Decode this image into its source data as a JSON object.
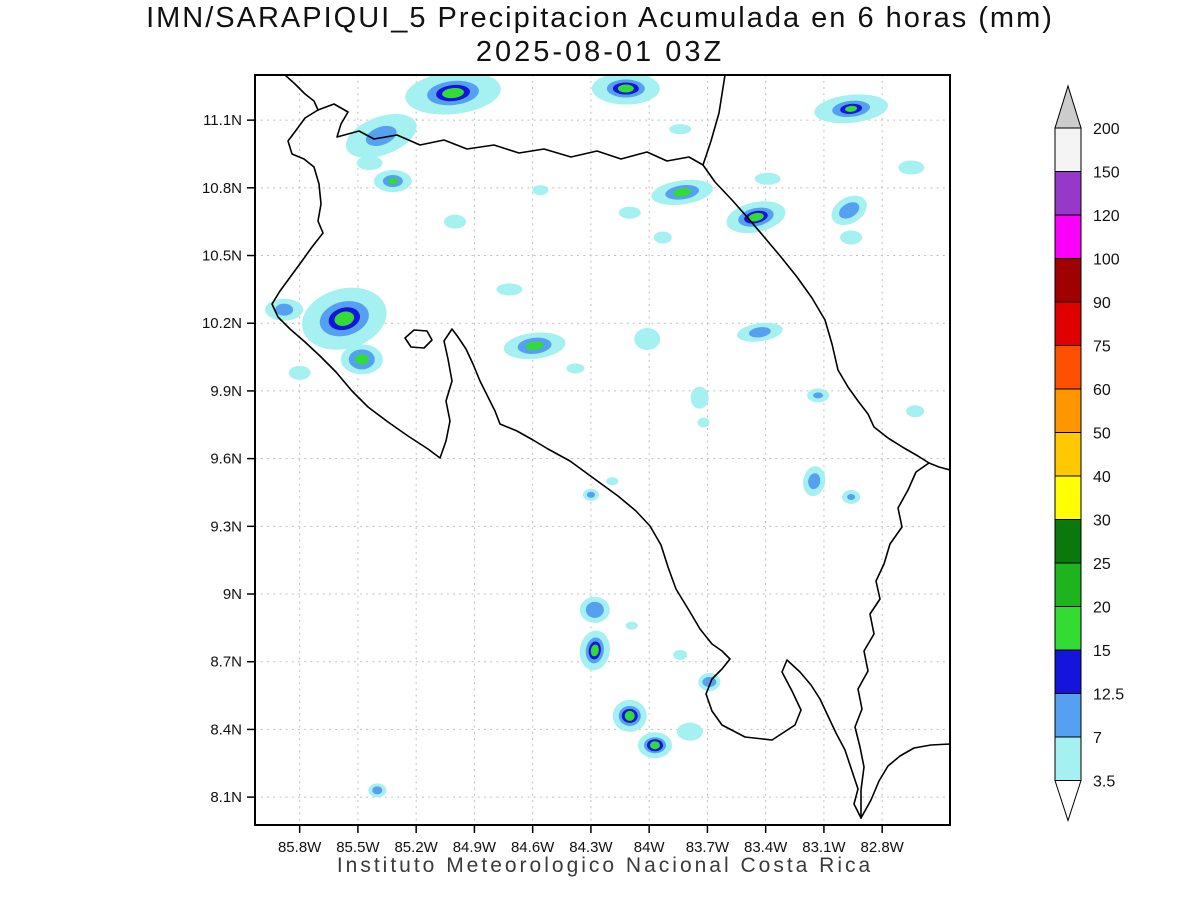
{
  "title": {
    "line1": "IMN/SARAPIQUI_5 Precipitacion Acumulada en 6 horas (mm)",
    "line2": "2025-08-01 03Z"
  },
  "footer": "Instituto Meteorologico Nacional Costa Rica",
  "map": {
    "lat_ticks": [
      {
        "label": "11.1N",
        "lat": 11.1
      },
      {
        "label": "10.8N",
        "lat": 10.8
      },
      {
        "label": "10.5N",
        "lat": 10.5
      },
      {
        "label": "10.2N",
        "lat": 10.2
      },
      {
        "label": "9.9N",
        "lat": 9.9
      },
      {
        "label": "9.6N",
        "lat": 9.6
      },
      {
        "label": "9.3N",
        "lat": 9.3
      },
      {
        "label": "9N",
        "lat": 9.0
      },
      {
        "label": "8.7N",
        "lat": 8.7
      },
      {
        "label": "8.4N",
        "lat": 8.4
      },
      {
        "label": "8.1N",
        "lat": 8.1
      }
    ],
    "lon_ticks": [
      {
        "label": "85.8W",
        "lon": 85.8
      },
      {
        "label": "85.5W",
        "lon": 85.5
      },
      {
        "label": "85.2W",
        "lon": 85.2
      },
      {
        "label": "84.9W",
        "lon": 84.9
      },
      {
        "label": "84.6W",
        "lon": 84.6
      },
      {
        "label": "84.3W",
        "lon": 84.3
      },
      {
        "label": "84W",
        "lon": 84.0
      },
      {
        "label": "83.7W",
        "lon": 83.7
      },
      {
        "label": "83.4W",
        "lon": 83.4
      },
      {
        "label": "83.1W",
        "lon": 83.1
      },
      {
        "label": "82.8W",
        "lon": 82.8
      }
    ],
    "coast_paths": [
      "M285,75 L295,84 305,94 314,101 318,110",
      "M318,110 L334,104 348,112 341,124 337,137 359,131 374,139 397,135 420,145 444,140 467,149 494,145 519,153 544,149 571,157 597,151 621,159 647,152 667,161 689,157 703,165",
      "M703,165 L711,141 719,113 725,75",
      "M318,110 L305,118 297,129 288,141 292,154 304,159 314,167 319,184 321,204 318,221 323,233 312,247 302,261 291,276 280,291 272,304 278,317 290,329 305,342 320,356 336,372 352,391 368,407 388,422 408,436 428,449 440,458 446,441 450,421 446,401 452,381 448,359 444,341 452,329 458,337 466,349 473,364 480,381 488,397 495,411 500,424 517,431 533,440 548,449 570,461 596,480 618,496 636,511 650,526 661,545 668,567 676,589 690,612 700,629 712,644 722,651 730,659 722,669 712,679 706,694 712,711 722,725 745,737 772,740 795,725 801,710 792,691 782,672 787,660 800,672 811,685 820,699 828,716 836,733 845,750 852,771 858,789 854,804 861,818",
      "M929,463 L916,472 908,490 898,508 902,527 890,544 884,564 876,581 880,599 870,614 874,634 864,651 868,671 858,689 862,709 855,727 860,747 864,767 861,790 861,818",
      "M703,165 L715,182 732,200 748,218 765,238 781,257 797,277 812,298 825,320 832,344 838,370 848,387 858,401 868,414 874,427 888,438 904,448 918,456 929,463",
      "M929,463 L939,467 950,470",
      "M861,818 L871,800 879,781 888,766 900,756 914,748 931,745 950,744",
      "M405,338 L414,330 427,331 432,340 424,348 411,347 Z"
    ]
  },
  "colorbar": {
    "boundaries_top_to_bottom": [
      "200",
      "150",
      "120",
      "100",
      "90",
      "75",
      "60",
      "50",
      "40",
      "30",
      "25",
      "20",
      "15",
      "12.5",
      "7",
      "3.5"
    ],
    "segment_colors_top_to_bottom": [
      "#f4f4f4",
      "#9638c8",
      "#fa00fa",
      "#a00000",
      "#e10000",
      "#ff5000",
      "#ff9600",
      "#ffc800",
      "#ffff00",
      "#0a780a",
      "#1eb41e",
      "#32dc32",
      "#1414dc",
      "#55a0f0",
      "#a5f0f0"
    ],
    "triangle_top_color": "#cccccc",
    "triangle_bottom_color": "#ffffff"
  },
  "chart_data": {
    "type": "precipitation-contour-map",
    "units": "mm",
    "region": {
      "lon_west_max": 86.03,
      "lon_west_min": 82.45,
      "lat_min": 7.98,
      "lat_max": 11.3
    },
    "levels_mm": [
      3.5,
      7,
      12.5,
      15,
      20,
      25,
      30,
      40,
      50,
      60,
      75,
      90,
      100,
      120,
      150,
      200
    ],
    "palette": {
      "3.5": "#a5f0f0",
      "7": "#55a0f0",
      "12.5": "#1414dc",
      "15": "#32dc32",
      "20": "#1eb41e",
      "25": "#0a780a"
    },
    "cells": [
      {
        "lon": 85.01,
        "lat": 11.22,
        "rot": -6,
        "layers": [
          [
            "3.5",
            48,
            21
          ],
          [
            "7",
            26,
            12
          ],
          [
            "12.5",
            17,
            8
          ],
          [
            "15",
            11,
            5
          ]
        ]
      },
      {
        "lon": 84.12,
        "lat": 11.24,
        "layers": [
          [
            "3.5",
            34,
            16
          ],
          [
            "7",
            19,
            9
          ],
          [
            "12.5",
            13,
            6
          ],
          [
            "15",
            8,
            4
          ]
        ]
      },
      {
        "lon": 82.96,
        "lat": 11.15,
        "rot": -6,
        "layers": [
          [
            "3.5",
            37,
            14
          ],
          [
            "7",
            19,
            8
          ],
          [
            "12.5",
            11,
            5
          ],
          [
            "15",
            6,
            3
          ]
        ]
      },
      {
        "lon": 85.38,
        "lat": 11.03,
        "rot": -20,
        "layers": [
          [
            "3.5",
            37,
            19
          ],
          [
            "7",
            16,
            9
          ]
        ]
      },
      {
        "lon": 85.44,
        "lat": 10.91,
        "layers": [
          [
            "3.5",
            13,
            7
          ]
        ]
      },
      {
        "lon": 85.32,
        "lat": 10.83,
        "layers": [
          [
            "3.5",
            19,
            11
          ],
          [
            "7",
            10,
            6
          ],
          [
            "15",
            5,
            3
          ]
        ]
      },
      {
        "lon": 85.0,
        "lat": 10.65,
        "layers": [
          [
            "3.5",
            11,
            7
          ]
        ]
      },
      {
        "lon": 84.56,
        "lat": 10.79,
        "layers": [
          [
            "3.5",
            8,
            5
          ]
        ]
      },
      {
        "lon": 83.83,
        "lat": 10.78,
        "rot": -8,
        "layers": [
          [
            "3.5",
            31,
            12
          ],
          [
            "7",
            17,
            7
          ],
          [
            "15",
            9,
            4
          ]
        ]
      },
      {
        "lon": 84.1,
        "lat": 10.69,
        "layers": [
          [
            "3.5",
            11,
            6
          ]
        ]
      },
      {
        "lon": 83.45,
        "lat": 10.67,
        "rot": -12,
        "layers": [
          [
            "3.5",
            30,
            15
          ],
          [
            "7",
            18,
            9
          ],
          [
            "12.5",
            12,
            6
          ],
          [
            "15",
            8,
            4
          ]
        ]
      },
      {
        "lon": 82.97,
        "lat": 10.7,
        "rot": -30,
        "layers": [
          [
            "3.5",
            19,
            13
          ],
          [
            "7",
            11,
            7
          ]
        ]
      },
      {
        "lon": 82.96,
        "lat": 10.58,
        "layers": [
          [
            "3.5",
            11,
            7
          ]
        ]
      },
      {
        "lon": 82.65,
        "lat": 10.89,
        "layers": [
          [
            "3.5",
            13,
            7
          ]
        ]
      },
      {
        "lon": 83.93,
        "lat": 10.58,
        "layers": [
          [
            "3.5",
            9,
            6
          ]
        ]
      },
      {
        "lon": 83.39,
        "lat": 10.84,
        "layers": [
          [
            "3.5",
            13,
            6
          ]
        ]
      },
      {
        "lon": 83.84,
        "lat": 11.06,
        "layers": [
          [
            "3.5",
            11,
            5
          ]
        ]
      },
      {
        "lon": 85.88,
        "lat": 10.26,
        "layers": [
          [
            "3.5",
            19,
            11
          ],
          [
            "7",
            9,
            6
          ]
        ]
      },
      {
        "lon": 85.57,
        "lat": 10.22,
        "rot": -15,
        "layers": [
          [
            "3.5",
            43,
            30
          ],
          [
            "7",
            25,
            17
          ],
          [
            "12.5",
            16,
            11
          ],
          [
            "15",
            10,
            7
          ]
        ]
      },
      {
        "lon": 85.48,
        "lat": 10.04,
        "layers": [
          [
            "3.5",
            21,
            15
          ],
          [
            "7",
            13,
            10
          ],
          [
            "15",
            7,
            5
          ]
        ]
      },
      {
        "lon": 85.8,
        "lat": 9.98,
        "layers": [
          [
            "3.5",
            11,
            7
          ]
        ]
      },
      {
        "lon": 84.72,
        "lat": 10.35,
        "layers": [
          [
            "3.5",
            13,
            6
          ]
        ]
      },
      {
        "lon": 84.59,
        "lat": 10.1,
        "rot": -6,
        "layers": [
          [
            "3.5",
            31,
            13
          ],
          [
            "7",
            17,
            8
          ],
          [
            "15",
            9,
            4
          ]
        ]
      },
      {
        "lon": 84.38,
        "lat": 10.0,
        "layers": [
          [
            "3.5",
            9,
            5
          ]
        ]
      },
      {
        "lon": 84.01,
        "lat": 10.13,
        "layers": [
          [
            "3.5",
            13,
            11
          ]
        ]
      },
      {
        "lon": 83.43,
        "lat": 10.16,
        "rot": -8,
        "layers": [
          [
            "3.5",
            23,
            9
          ],
          [
            "7",
            11,
            5
          ]
        ]
      },
      {
        "lon": 83.74,
        "lat": 9.87,
        "layers": [
          [
            "3.5",
            9,
            11
          ]
        ]
      },
      {
        "lon": 83.72,
        "lat": 9.76,
        "layers": [
          [
            "3.5",
            6,
            5
          ]
        ]
      },
      {
        "lon": 83.13,
        "lat": 9.88,
        "layers": [
          [
            "3.5",
            11,
            7
          ],
          [
            "7",
            5,
            3
          ]
        ]
      },
      {
        "lon": 82.63,
        "lat": 9.81,
        "layers": [
          [
            "3.5",
            9,
            6
          ]
        ]
      },
      {
        "lon": 83.15,
        "lat": 9.5,
        "rot": 10,
        "layers": [
          [
            "3.5",
            11,
            15
          ],
          [
            "7",
            6,
            8
          ]
        ]
      },
      {
        "lon": 82.96,
        "lat": 9.43,
        "layers": [
          [
            "3.5",
            9,
            7
          ],
          [
            "7",
            4,
            3
          ]
        ]
      },
      {
        "lon": 84.3,
        "lat": 9.44,
        "layers": [
          [
            "3.5",
            8,
            6
          ],
          [
            "7",
            4,
            3
          ]
        ]
      },
      {
        "lon": 84.19,
        "lat": 9.5,
        "layers": [
          [
            "3.5",
            6,
            4
          ]
        ]
      },
      {
        "lon": 84.28,
        "lat": 8.93,
        "layers": [
          [
            "3.5",
            15,
            13
          ],
          [
            "7",
            9,
            8
          ]
        ]
      },
      {
        "lon": 84.09,
        "lat": 8.86,
        "layers": [
          [
            "3.5",
            6,
            4
          ]
        ]
      },
      {
        "lon": 84.28,
        "lat": 8.75,
        "rot": 8,
        "layers": [
          [
            "3.5",
            15,
            20
          ],
          [
            "7",
            9,
            13
          ],
          [
            "12.5",
            6,
            9
          ],
          [
            "15",
            4,
            6
          ]
        ]
      },
      {
        "lon": 83.84,
        "lat": 8.73,
        "layers": [
          [
            "3.5",
            7,
            5
          ]
        ]
      },
      {
        "lon": 83.69,
        "lat": 8.61,
        "layers": [
          [
            "3.5",
            11,
            9
          ],
          [
            "7",
            7,
            5
          ]
        ]
      },
      {
        "lon": 84.1,
        "lat": 8.46,
        "layers": [
          [
            "3.5",
            17,
            16
          ],
          [
            "7",
            11,
            10
          ],
          [
            "12.5",
            8,
            7
          ],
          [
            "15",
            5,
            5
          ]
        ]
      },
      {
        "lon": 83.97,
        "lat": 8.33,
        "layers": [
          [
            "3.5",
            17,
            13
          ],
          [
            "7",
            11,
            8
          ],
          [
            "12.5",
            8,
            6
          ],
          [
            "15",
            5,
            4
          ]
        ]
      },
      {
        "lon": 83.79,
        "lat": 8.39,
        "layers": [
          [
            "3.5",
            13,
            9
          ]
        ]
      },
      {
        "lon": 85.4,
        "lat": 8.13,
        "layers": [
          [
            "3.5",
            9,
            7
          ],
          [
            "7",
            5,
            4
          ]
        ]
      }
    ]
  }
}
